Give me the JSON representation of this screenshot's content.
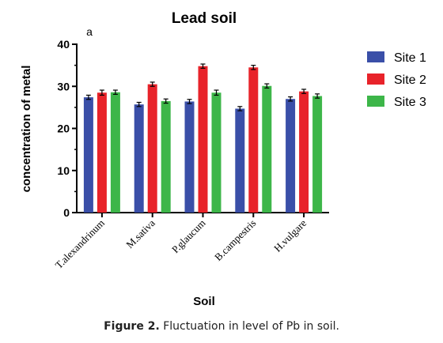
{
  "chart_data": {
    "type": "bar",
    "title": "Lead soil",
    "panel_label": "a",
    "xlabel": "Soil",
    "ylabel": "concentration of metal",
    "ylim": [
      0,
      40
    ],
    "yticks": [
      "0",
      "10",
      "20",
      "30",
      "40"
    ],
    "categories": [
      "T.alexandrinum",
      "M.sativa",
      "P.glaucum",
      "B.campestris",
      "H.vulgare"
    ],
    "series": [
      {
        "name": "Site 1",
        "color": "#3a4fa8",
        "values": [
          27.4,
          25.7,
          26.4,
          24.7,
          27.0
        ],
        "errors": [
          0.5,
          0.5,
          0.5,
          0.5,
          0.5
        ]
      },
      {
        "name": "Site 2",
        "color": "#e8232a",
        "values": [
          28.5,
          30.5,
          34.8,
          34.5,
          28.8
        ],
        "errors": [
          0.6,
          0.5,
          0.5,
          0.5,
          0.5
        ]
      },
      {
        "name": "Site 3",
        "color": "#3db649",
        "values": [
          28.6,
          26.5,
          28.5,
          30.1,
          27.7
        ],
        "errors": [
          0.5,
          0.5,
          0.6,
          0.5,
          0.5
        ]
      }
    ],
    "legend_position": "right",
    "grid": false,
    "error_bars": true
  },
  "caption": {
    "label": "Figure 2.",
    "text": "Fluctuation in level of Pb in soil."
  }
}
